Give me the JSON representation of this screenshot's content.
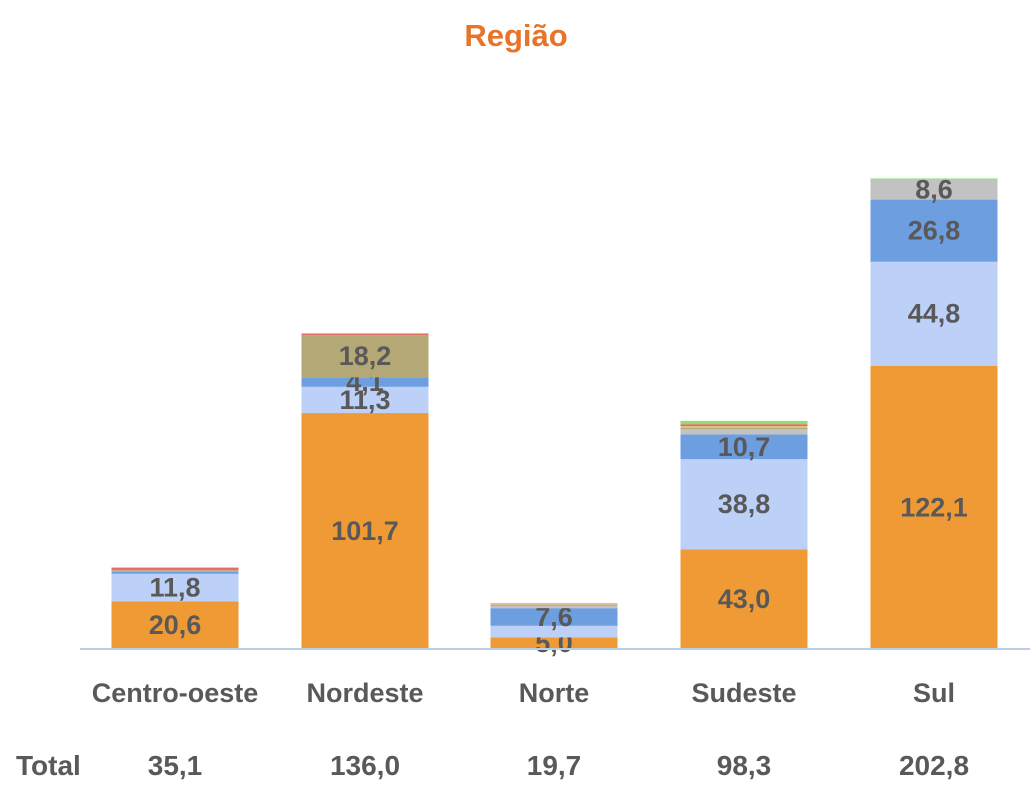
{
  "chart_data": {
    "type": "bar",
    "stacked": true,
    "title": "Região",
    "categories": [
      "Centro-oeste",
      "Nordeste",
      "Norte",
      "Sudeste",
      "Sul"
    ],
    "series": [
      {
        "name": "s1",
        "color": "#F09A36",
        "values": [
          20.6,
          101.7,
          5.0,
          43.0,
          122.1
        ],
        "labels": [
          "20,6",
          "101,7",
          "5,0",
          "43,0",
          "122,1"
        ]
      },
      {
        "name": "s2",
        "color": "#BDD0F8",
        "values": [
          11.8,
          11.3,
          5.0,
          38.8,
          44.8
        ],
        "labels": [
          "11,8",
          "11,3",
          "",
          "38,8",
          "44,8"
        ]
      },
      {
        "name": "s3",
        "color": "#6C9EE0",
        "values": [
          1.0,
          4.1,
          7.6,
          10.7,
          26.8
        ],
        "labels": [
          "",
          "4,1",
          "7,6",
          "10,7",
          "26,8"
        ]
      },
      {
        "name": "s4",
        "color": "#C2C2C2",
        "values": [
          0.3,
          0.0,
          1.0,
          2.2,
          8.6
        ],
        "labels": [
          "",
          "",
          "",
          "",
          "8,6"
        ]
      },
      {
        "name": "s5",
        "color": "#B4A876",
        "values": [
          0.2,
          18.2,
          0.5,
          0.6,
          0.0
        ],
        "labels": [
          "",
          "18,2",
          "",
          "",
          ""
        ]
      },
      {
        "name": "s6",
        "color": "#E6B98C",
        "values": [
          0.0,
          0.0,
          0.4,
          0.8,
          0.0
        ],
        "labels": [
          "",
          "",
          "",
          "",
          ""
        ]
      },
      {
        "name": "s7",
        "color": "#E07060",
        "values": [
          1.2,
          0.7,
          0.2,
          0.8,
          0.0
        ],
        "labels": [
          "",
          "",
          "",
          "",
          ""
        ]
      },
      {
        "name": "s8",
        "color": "#8EE070",
        "values": [
          0.0,
          0.0,
          0.0,
          1.4,
          0.5
        ],
        "labels": [
          "",
          "",
          "",
          "",
          ""
        ]
      }
    ],
    "totals_label": "Total",
    "totals": [
      "35,1",
      "136,0",
      "19,7",
      "98,3",
      "202,8"
    ],
    "ylim": [
      0,
      228
    ]
  },
  "colors": {
    "title": "#E8732A",
    "baseline": "#B8CFE8",
    "text": "#595959"
  }
}
